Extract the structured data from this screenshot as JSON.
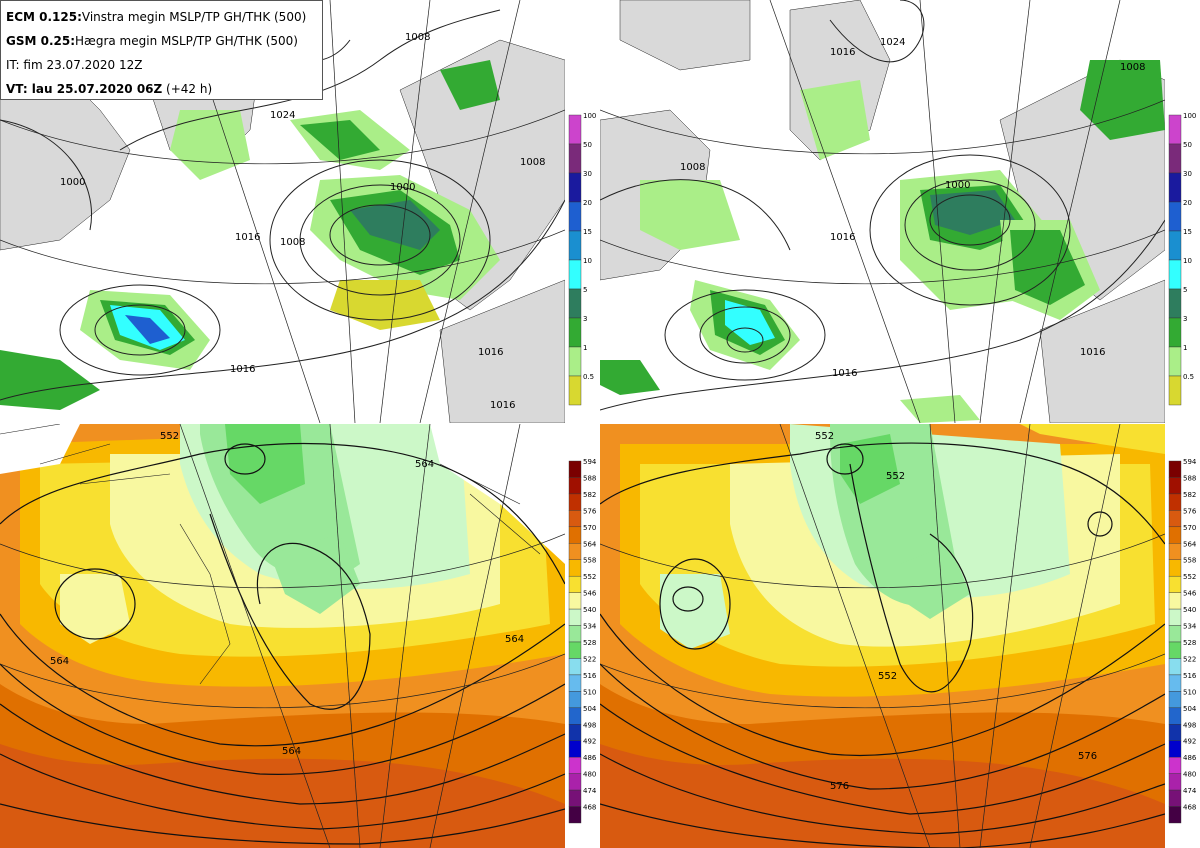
{
  "info": {
    "ecm_label": "ECM 0.125:",
    "ecm_text": "Vinstra megin MSLP/TP GH/THK (500)",
    "gsm_label": "GSM 0.25:",
    "gsm_text": "Hægra megin MSLP/TP GH/THK (500)",
    "it_text": "IT: fim 23.07.2020 12Z",
    "vt_label": "VT: lau 25.07.2020 06Z",
    "vt_suffix": " (+42 h)"
  },
  "precip_legend": {
    "labels": [
      "100",
      "50",
      "30",
      "20",
      "15",
      "10",
      "5",
      "3",
      "1",
      "0.5"
    ],
    "colors": [
      "#cc44cc",
      "#7a2a7a",
      "#1a1a9e",
      "#1e5fd0",
      "#1a8fd0",
      "#33ffff",
      "#2e7d5e",
      "#33aa33",
      "#aaee88",
      "#d8d830"
    ]
  },
  "gh_legend": {
    "labels": [
      "594",
      "588",
      "582",
      "576",
      "570",
      "564",
      "558",
      "552",
      "546",
      "540",
      "534",
      "528",
      "522",
      "516",
      "510",
      "504",
      "498",
      "492",
      "486",
      "480",
      "474",
      "468"
    ],
    "colors": [
      "#7a0000",
      "#a01000",
      "#c03000",
      "#d85a10",
      "#e07000",
      "#f09020",
      "#f8b800",
      "#f8e030",
      "#f8f8a0",
      "#ccf8c8",
      "#99e899",
      "#66d866",
      "#88ddee",
      "#66bbee",
      "#4499dd",
      "#2266cc",
      "#1133aa",
      "#0000cc",
      "#cc33cc",
      "#aa22aa",
      "#771177",
      "#440044"
    ]
  },
  "maps": {
    "top_left_labels": [
      "1024",
      "1008",
      "1000",
      "1016",
      "1008",
      "1016",
      "1016",
      "1016",
      "1000",
      "1008"
    ],
    "top_right_labels": [
      "1016",
      "1008",
      "1024",
      "1000",
      "1008",
      "1016",
      "1016",
      "1016"
    ],
    "bottom_left_labels": [
      "564",
      "564",
      "564",
      "564",
      "552"
    ],
    "bottom_right_labels": [
      "552",
      "552",
      "552",
      "576",
      "576"
    ]
  }
}
